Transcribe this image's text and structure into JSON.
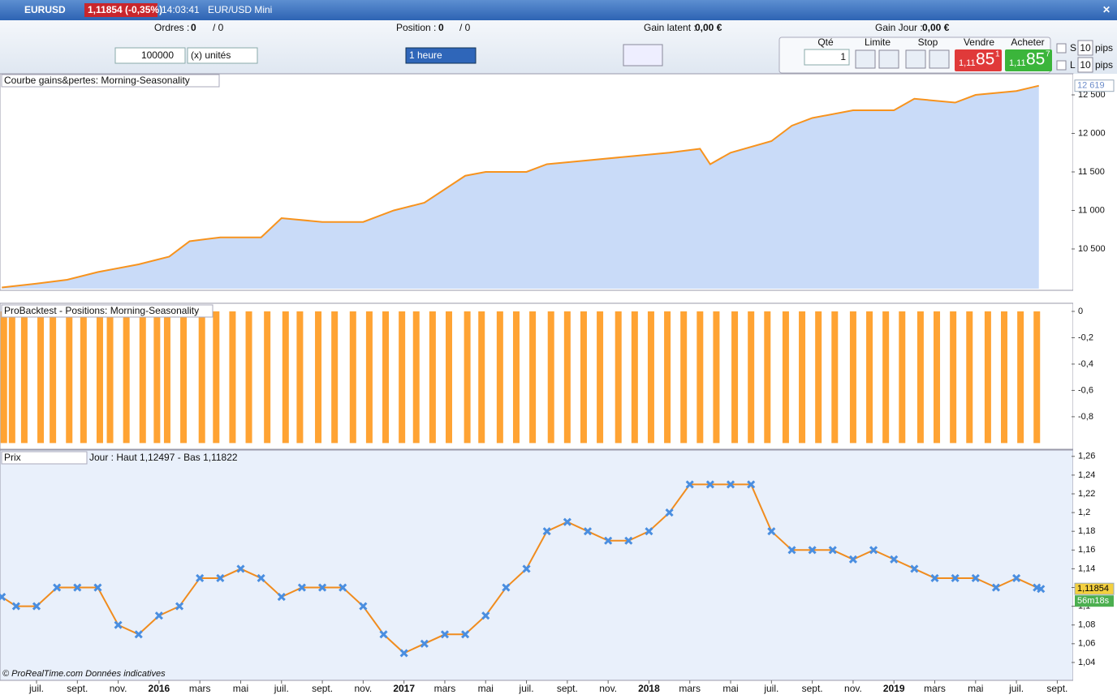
{
  "toolbar": {
    "symbol": "EURUSD",
    "quote": "1,11854 (-0,35%)",
    "time": "14:03:41",
    "instrument": "EUR/USD Mini"
  },
  "status": {
    "orders_label": "Ordres :",
    "orders": "0",
    "orders_total": "/ 0",
    "position_label": "Position :",
    "position": "0",
    "position_total": "/ 0",
    "gain_latent_label": "Gain latent :",
    "gain_latent": "0,00 €",
    "gain_jour_label": "Gain Jour :",
    "gain_jour": "0,00 €"
  },
  "order_form": {
    "quantity": "100000",
    "units": "(x) unités",
    "timeframe": "1 heure",
    "qty_label": "Qté",
    "qty": "1",
    "limit_label": "Limite",
    "stop_label": "Stop",
    "sell_label": "Vendre",
    "sell_big": "1,11",
    "sell_mid": "85",
    "sell_small": "1",
    "buy_label": "Acheter",
    "buy_big": "1,11",
    "buy_mid": "85",
    "buy_small": "7",
    "s_label": "S",
    "s_pips": "10",
    "s_unit": "pips",
    "l_label": "L",
    "l_pips": "10",
    "l_unit": "pips"
  },
  "chart_data": [
    {
      "type": "area",
      "title": "Courbe gains&pertes: Morning-Seasonality",
      "color": "#f7931e",
      "fill": "#c9dbf8",
      "x": [
        -1.7,
        0,
        1.5,
        3,
        5,
        6.5,
        7.5,
        9,
        11,
        12,
        14,
        16,
        17.5,
        19,
        21,
        22,
        24,
        25,
        27,
        29,
        31,
        32.5,
        33,
        34,
        36,
        37,
        38,
        40,
        42,
        43,
        45,
        46,
        48,
        49.1
      ],
      "values": [
        10000,
        10050,
        10100,
        10200,
        10300,
        10400,
        10600,
        10650,
        10650,
        10900,
        10850,
        10850,
        11000,
        11100,
        11450,
        11500,
        11500,
        11600,
        11650,
        11700,
        11750,
        11800,
        11600,
        11750,
        11900,
        12100,
        12200,
        12300,
        12300,
        12450,
        12400,
        12500,
        12550,
        12619
      ],
      "xlim": [
        -1.71,
        50.7
      ],
      "ylim": [
        9984,
        12679
      ],
      "yticks": [
        {
          "value": 10500,
          "label": "10 500"
        },
        {
          "value": 11000,
          "label": "11 000"
        },
        {
          "value": 11500,
          "label": "11 500"
        },
        {
          "value": 12000,
          "label": "12 000"
        },
        {
          "value": 12500,
          "label": "12 500"
        }
      ],
      "last_value": {
        "value": 12619,
        "label": "12 619"
      }
    },
    {
      "type": "bar",
      "title": "ProBacktest - Positions: Morning-Seasonality",
      "color": "#ffa333",
      "x": [
        -1.6,
        -1.2,
        -0.6,
        0.2,
        0.8,
        1.6,
        2.3,
        3.1,
        3.6,
        4.4,
        5.2,
        5.9,
        6.4,
        7.2,
        8.1,
        8.8,
        9.6,
        10.4,
        11.3,
        12.2,
        12.9,
        13.8,
        14.6,
        15.5,
        16.3,
        17.1,
        17.9,
        18.6,
        19.4,
        20.2,
        21.1,
        21.8,
        22.7,
        23.5,
        24.3,
        25.2,
        26,
        26.8,
        27.6,
        28.5,
        29.3,
        30.1,
        30.9,
        31.7,
        32.5,
        33.3,
        34.2,
        35,
        35.8,
        36.7,
        37.5,
        38.3,
        39.1,
        40,
        40.8,
        41.6,
        42.4,
        43.3,
        44.1,
        44.9,
        45.7,
        46.6,
        47.4,
        48.2,
        49
      ],
      "values": [
        -1,
        -1,
        -1,
        -1,
        -1,
        -1,
        -1,
        -1,
        -1,
        -1,
        -1,
        -1,
        -1,
        -1,
        -1,
        -1,
        -1,
        -1,
        -1,
        -1,
        -1,
        -1,
        -1,
        -1,
        -1,
        -1,
        -1,
        -1,
        -1,
        -1,
        -1,
        -1,
        -1,
        -1,
        -1,
        -1,
        -1,
        -1,
        -1,
        -1,
        -1,
        -1,
        -1,
        -1,
        -1,
        -1,
        -1,
        -1,
        -1,
        -1,
        -1,
        -1,
        -1,
        -1,
        -1,
        -1,
        -1,
        -1,
        -1,
        -1,
        -1,
        -1,
        -1,
        -1,
        -1
      ],
      "xlim": [
        -1.71,
        50.7
      ],
      "ylim": [
        -1.01,
        0.037
      ],
      "yticks": [
        0,
        {
          "value": -0.2,
          "label": "-0,2"
        },
        {
          "value": -0.4,
          "label": "-0,4"
        },
        {
          "value": -0.6,
          "label": "-0,6"
        },
        {
          "value": -0.8,
          "label": "-0,8"
        }
      ]
    },
    {
      "type": "line",
      "title": "Prix",
      "info": "Jour : Haut 1,12497 - Bas 1,11822",
      "color": "#f08c1e",
      "marker_color": "#4a8ee0",
      "x": [
        -1.7,
        -1,
        0,
        1,
        2,
        3,
        4,
        5,
        6,
        7,
        8,
        9,
        10,
        11,
        12,
        13,
        14,
        15,
        16,
        17,
        18,
        19,
        20,
        21,
        22,
        23,
        24,
        25,
        26,
        27,
        28,
        29,
        30,
        31,
        32,
        33,
        34,
        35,
        36,
        37,
        38,
        39,
        40,
        41,
        42,
        43,
        44,
        45,
        46,
        47,
        48,
        49,
        49.2
      ],
      "values": [
        1.11,
        1.1,
        1.1,
        1.12,
        1.12,
        1.12,
        1.08,
        1.07,
        1.09,
        1.1,
        1.13,
        1.13,
        1.14,
        1.13,
        1.11,
        1.12,
        1.12,
        1.12,
        1.1,
        1.07,
        1.05,
        1.06,
        1.07,
        1.07,
        1.09,
        1.12,
        1.14,
        1.18,
        1.19,
        1.18,
        1.17,
        1.17,
        1.18,
        1.2,
        1.23,
        1.23,
        1.23,
        1.23,
        1.18,
        1.16,
        1.16,
        1.16,
        1.15,
        1.16,
        1.15,
        1.14,
        1.13,
        1.13,
        1.13,
        1.12,
        1.13,
        1.12,
        1.1185
      ],
      "xlim": [
        -1.71,
        50.7
      ],
      "ylim": [
        1.0235,
        1.265
      ],
      "yticks": [
        {
          "value": 1.04,
          "label": "1,04"
        },
        {
          "value": 1.06,
          "label": "1,06"
        },
        {
          "value": 1.08,
          "label": "1,08"
        },
        {
          "value": 1.1,
          "label": "1,1"
        },
        {
          "value": 1.12,
          "label": "1,12"
        },
        {
          "value": 1.14,
          "label": "1,14"
        },
        {
          "value": 1.16,
          "label": "1,16"
        },
        {
          "value": 1.18,
          "label": "1,18"
        },
        {
          "value": 1.2,
          "label": "1,2"
        },
        {
          "value": 1.22,
          "label": "1,22"
        },
        {
          "value": 1.24,
          "label": "1,24"
        },
        {
          "value": 1.26,
          "label": "1,26"
        }
      ],
      "xticks": [
        {
          "value": 0,
          "label": "juil."
        },
        {
          "value": 2,
          "label": "sept."
        },
        {
          "value": 4,
          "label": "nov."
        },
        {
          "value": 6,
          "label": "2016"
        },
        {
          "value": 8,
          "label": "mars"
        },
        {
          "value": 10,
          "label": "mai"
        },
        {
          "value": 12,
          "label": "juil."
        },
        {
          "value": 14,
          "label": "sept."
        },
        {
          "value": 16,
          "label": "nov."
        },
        {
          "value": 18,
          "label": "2017"
        },
        {
          "value": 20,
          "label": "mars"
        },
        {
          "value": 22,
          "label": "mai"
        },
        {
          "value": 24,
          "label": "juil."
        },
        {
          "value": 26,
          "label": "sept."
        },
        {
          "value": 28,
          "label": "nov."
        },
        {
          "value": 30,
          "label": "2018"
        },
        {
          "value": 32,
          "label": "mars"
        },
        {
          "value": 34,
          "label": "mai"
        },
        {
          "value": 36,
          "label": "juil."
        },
        {
          "value": 38,
          "label": "sept."
        },
        {
          "value": 40,
          "label": "nov."
        },
        {
          "value": 42,
          "label": "2019"
        },
        {
          "value": 44,
          "label": "mars"
        },
        {
          "value": 46,
          "label": "mai"
        },
        {
          "value": 48,
          "label": "juil."
        },
        {
          "value": 50,
          "label": "sept."
        }
      ],
      "last_value": {
        "value": 1.11854,
        "label": "1,11854"
      },
      "countdown": "56m18s",
      "credit": "© ProRealTime.com Données indicatives"
    }
  ]
}
